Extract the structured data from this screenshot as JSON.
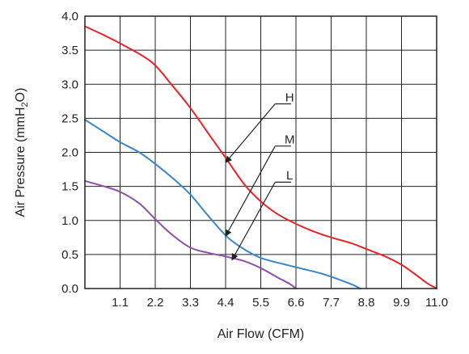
{
  "chart_data": {
    "type": "line",
    "title": "",
    "xlabel": "Air Flow (CFM)",
    "ylabel": {
      "pre": "Air Pressure (mmH",
      "sub": "2",
      "post": "O)"
    },
    "xlim": [
      0,
      11.0
    ],
    "ylim": [
      0,
      4.0
    ],
    "grid": true,
    "x_ticks": [
      1.1,
      2.2,
      3.3,
      4.4,
      5.5,
      6.6,
      7.7,
      8.8,
      9.9,
      11.0
    ],
    "x_tick_labels": [
      "1.1",
      "2.2",
      "3.3",
      "4.4",
      "5.5",
      "6.6",
      "7.7",
      "8.8",
      "9.9",
      "11.0"
    ],
    "y_ticks": [
      0,
      0.5,
      1.0,
      1.5,
      2.0,
      2.5,
      3.0,
      3.5,
      4.0
    ],
    "y_tick_labels": [
      "0.0",
      "0.5",
      "1.0",
      "1.5",
      "2.0",
      "2.5",
      "3.0",
      "3.5",
      "4.0"
    ],
    "series": [
      {
        "name": "H",
        "color": "#e8242b",
        "points": [
          [
            0,
            3.85
          ],
          [
            0.6,
            3.72
          ],
          [
            1.3,
            3.55
          ],
          [
            2.1,
            3.32
          ],
          [
            2.7,
            3.0
          ],
          [
            3.3,
            2.65
          ],
          [
            3.9,
            2.25
          ],
          [
            4.4,
            1.92
          ],
          [
            5.0,
            1.52
          ],
          [
            5.5,
            1.28
          ],
          [
            6.0,
            1.1
          ],
          [
            6.6,
            0.95
          ],
          [
            7.2,
            0.83
          ],
          [
            7.7,
            0.75
          ],
          [
            8.3,
            0.67
          ],
          [
            8.8,
            0.58
          ],
          [
            9.4,
            0.47
          ],
          [
            9.9,
            0.35
          ],
          [
            10.3,
            0.22
          ],
          [
            10.7,
            0.08
          ],
          [
            11.0,
            0.0
          ]
        ]
      },
      {
        "name": "M",
        "color": "#3a86c8",
        "points": [
          [
            0,
            2.48
          ],
          [
            0.6,
            2.3
          ],
          [
            1.1,
            2.15
          ],
          [
            1.7,
            2.0
          ],
          [
            2.2,
            1.83
          ],
          [
            2.8,
            1.6
          ],
          [
            3.3,
            1.38
          ],
          [
            3.8,
            1.1
          ],
          [
            4.4,
            0.78
          ],
          [
            4.9,
            0.6
          ],
          [
            5.5,
            0.45
          ],
          [
            6.2,
            0.36
          ],
          [
            6.8,
            0.29
          ],
          [
            7.4,
            0.22
          ],
          [
            7.9,
            0.14
          ],
          [
            8.4,
            0.05
          ],
          [
            8.6,
            0.0
          ]
        ]
      },
      {
        "name": "L",
        "color": "#8e50a8",
        "points": [
          [
            0,
            1.58
          ],
          [
            0.6,
            1.5
          ],
          [
            1.1,
            1.42
          ],
          [
            1.7,
            1.25
          ],
          [
            2.2,
            1.02
          ],
          [
            2.7,
            0.8
          ],
          [
            3.3,
            0.6
          ],
          [
            3.9,
            0.52
          ],
          [
            4.4,
            0.47
          ],
          [
            5.0,
            0.4
          ],
          [
            5.5,
            0.3
          ],
          [
            6.0,
            0.17
          ],
          [
            6.4,
            0.07
          ],
          [
            6.6,
            0.0
          ]
        ]
      }
    ],
    "annotations": [
      {
        "label": "H",
        "text_at": [
          6.1,
          2.75
        ],
        "underline_from": [
          5.95,
          2.76
        ],
        "underline_to": [
          6.45,
          2.76
        ],
        "arrow_to": [
          4.4,
          1.85
        ]
      },
      {
        "label": "M",
        "text_at": [
          6.1,
          2.13
        ],
        "underline_from": [
          5.95,
          2.14
        ],
        "underline_to": [
          6.45,
          2.14
        ],
        "arrow_to": [
          4.4,
          0.77
        ]
      },
      {
        "label": "L",
        "text_at": [
          6.1,
          1.6
        ],
        "underline_from": [
          5.95,
          1.61
        ],
        "underline_to": [
          6.45,
          1.61
        ],
        "arrow_to": [
          4.6,
          0.42
        ]
      }
    ]
  }
}
